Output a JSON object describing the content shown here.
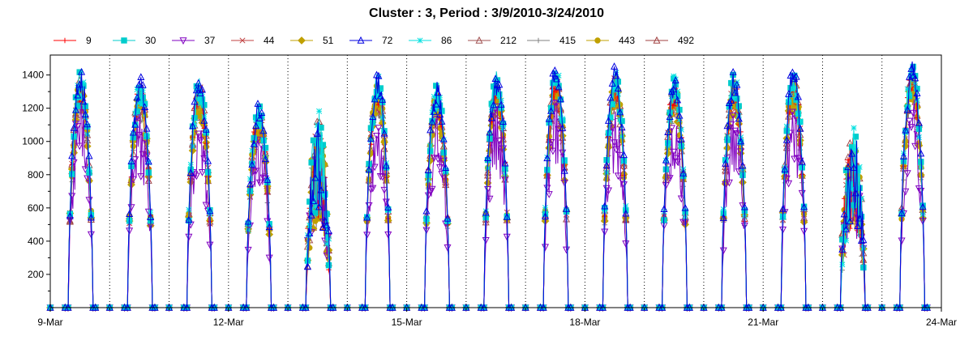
{
  "chart_data": {
    "type": "line",
    "title": "Cluster : 3, Period : 3/9/2010-3/24/2010",
    "xlabel": "",
    "ylabel": "",
    "x_ticks": [
      "9-Mar",
      "12-Mar",
      "15-Mar",
      "18-Mar",
      "21-Mar",
      "24-Mar"
    ],
    "x_range_days": [
      0,
      15
    ],
    "y_ticks": [
      200,
      400,
      600,
      800,
      1000,
      1200,
      1400
    ],
    "ylim": [
      0,
      1520
    ],
    "grid": "dotted vertical lines at day boundaries",
    "legend_position": "top",
    "daily_peak_values": [
      1450,
      1400,
      1410,
      1250,
      1200,
      1430,
      1370,
      1440,
      1470,
      1460,
      1420,
      1430,
      1460,
      1100,
      1500
    ],
    "series": [
      {
        "name": "9",
        "color": "#ff0000",
        "marker": "plus"
      },
      {
        "name": "30",
        "color": "#00cccc",
        "marker": "square"
      },
      {
        "name": "37",
        "color": "#8000c0",
        "marker": "triangle-down"
      },
      {
        "name": "44",
        "color": "#c04040",
        "marker": "x"
      },
      {
        "name": "51",
        "color": "#c0a000",
        "marker": "diamond"
      },
      {
        "name": "72",
        "color": "#0000e0",
        "marker": "triangle-up"
      },
      {
        "name": "86",
        "color": "#00e0e0",
        "marker": "star"
      },
      {
        "name": "212",
        "color": "#a05050",
        "marker": "triangle-up"
      },
      {
        "name": "415",
        "color": "#808080",
        "marker": "plus"
      },
      {
        "name": "443",
        "color": "#c0a000",
        "marker": "circle"
      },
      {
        "name": "492",
        "color": "#a04040",
        "marker": "triangle-up"
      }
    ]
  }
}
